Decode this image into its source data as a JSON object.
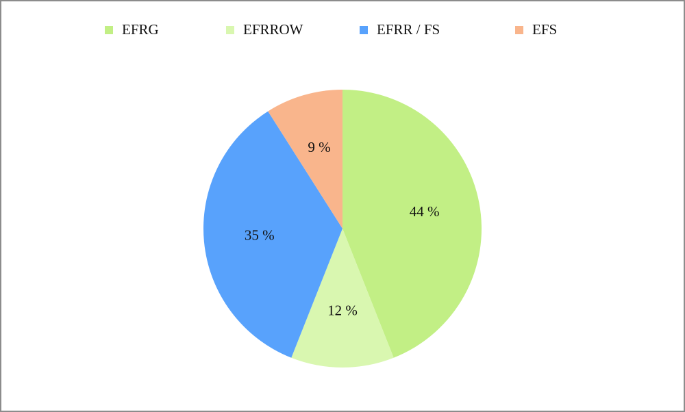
{
  "chart_data": {
    "type": "pie",
    "categories": [
      "EFRG",
      "EFRROW",
      "EFRR / FS",
      "EFS"
    ],
    "values": [
      44,
      12,
      35,
      9
    ],
    "value_labels": [
      "44 %",
      "12 %",
      "35 %",
      "9 %"
    ],
    "colors": [
      "#c2ef85",
      "#d9f7b0",
      "#58a2fc",
      "#f9b58c"
    ],
    "legend": "top"
  }
}
